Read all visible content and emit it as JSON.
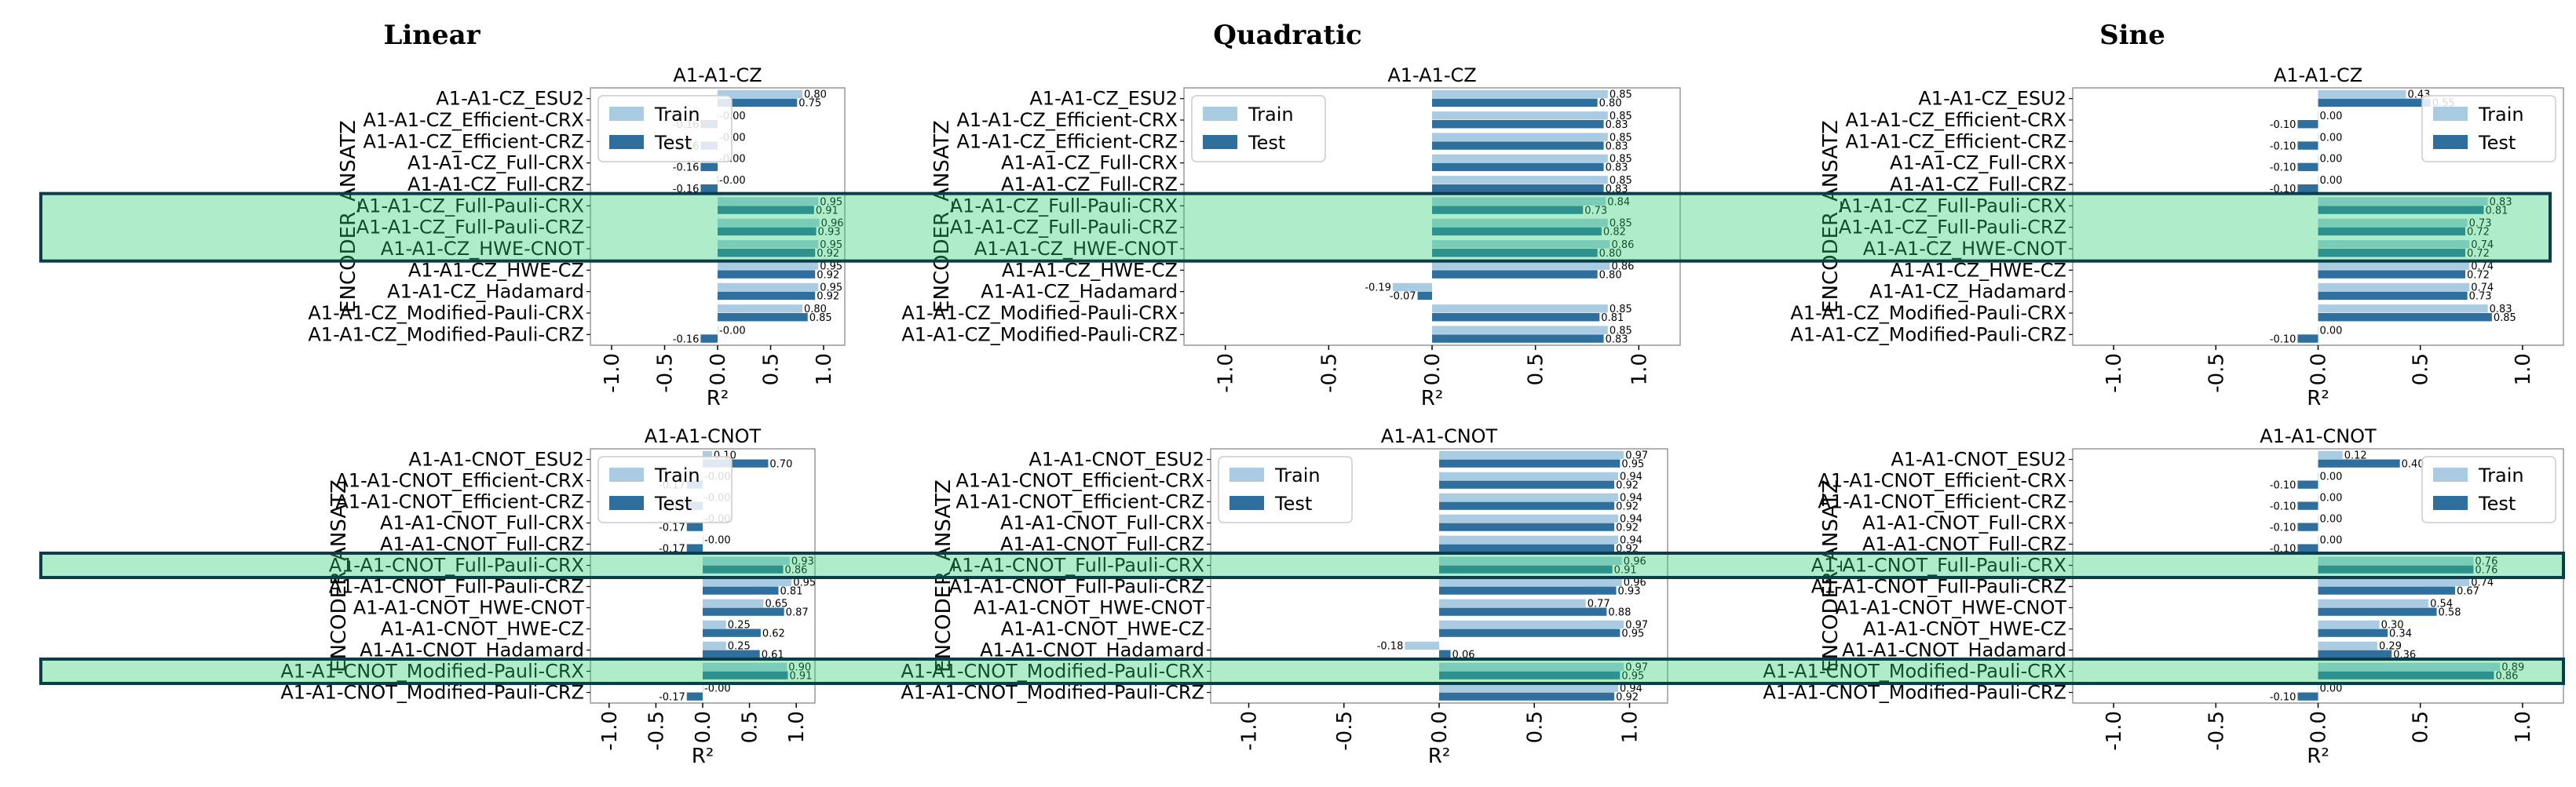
{
  "figure": {
    "column_titles": [
      "Linear",
      "Quadratic",
      "Sine"
    ],
    "legend": {
      "train": "Train",
      "test": "Test"
    },
    "colors": {
      "train": "#a9cce3",
      "test": "#2e6f9e",
      "highlight_fill": "#2ecc71",
      "highlight_stroke": "#0b3d4a"
    }
  },
  "chart_data": [
    {
      "type": "bar",
      "orientation": "horizontal",
      "column": "Linear",
      "row": 0,
      "title": "A1-A1-CZ",
      "xlabel": "R²",
      "ylabel": "ENCODER_ANSATZ",
      "xlim": [
        -1.2,
        1.2
      ],
      "xticks": [
        "-1.0",
        "-0.5",
        "0.0",
        "0.5",
        "1.0"
      ],
      "xtick_values": [
        -1.0,
        -0.5,
        0.0,
        0.5,
        1.0
      ],
      "legend_position": "upper-left",
      "categories": [
        "A1-A1-CZ_ESU2",
        "A1-A1-CZ_Efficient-CRX",
        "A1-A1-CZ_Efficient-CRZ",
        "A1-A1-CZ_Full-CRX",
        "A1-A1-CZ_Full-CRZ",
        "A1-A1-CZ_Full-Pauli-CRX",
        "A1-A1-CZ_Full-Pauli-CRZ",
        "A1-A1-CZ_HWE-CNOT",
        "A1-A1-CZ_HWE-CZ",
        "A1-A1-CZ_Hadamard",
        "A1-A1-CZ_Modified-Pauli-CRX",
        "A1-A1-CZ_Modified-Pauli-CRZ"
      ],
      "series": [
        {
          "name": "Train",
          "values": [
            0.8,
            -0.0,
            -0.0,
            -0.0,
            -0.0,
            0.95,
            0.96,
            0.95,
            0.95,
            0.95,
            0.8,
            -0.0
          ],
          "labels": [
            "0.80",
            "-0.00",
            "-0.00",
            "-0.00",
            "-0.00",
            "0.95",
            "0.96",
            "0.95",
            "0.95",
            "0.95",
            "0.80",
            "-0.00"
          ]
        },
        {
          "name": "Test",
          "values": [
            0.75,
            -0.16,
            -0.16,
            -0.16,
            -0.16,
            0.91,
            0.93,
            0.92,
            0.92,
            0.92,
            0.85,
            -0.16
          ],
          "labels": [
            "0.75",
            "-0.16",
            "-0.16",
            "-0.16",
            "-0.16",
            "0.91",
            "0.93",
            "0.92",
            "0.92",
            "0.92",
            "0.85",
            "-0.16"
          ]
        }
      ],
      "highlighted_categories": [
        "A1-A1-CZ_Full-Pauli-CRX",
        "A1-A1-CZ_Full-Pauli-CRZ",
        "A1-A1-CZ_HWE-CNOT"
      ]
    },
    {
      "type": "bar",
      "orientation": "horizontal",
      "column": "Quadratic",
      "row": 0,
      "title": "A1-A1-CZ",
      "xlabel": "R²",
      "ylabel": "ENCODER_ANSATZ",
      "xlim": [
        -1.2,
        1.2
      ],
      "xticks": [
        "-1.0",
        "-0.5",
        "0.0",
        "0.5",
        "1.0"
      ],
      "xtick_values": [
        -1.0,
        -0.5,
        0.0,
        0.5,
        1.0
      ],
      "legend_position": "upper-left",
      "categories": [
        "A1-A1-CZ_ESU2",
        "A1-A1-CZ_Efficient-CRX",
        "A1-A1-CZ_Efficient-CRZ",
        "A1-A1-CZ_Full-CRX",
        "A1-A1-CZ_Full-CRZ",
        "A1-A1-CZ_Full-Pauli-CRX",
        "A1-A1-CZ_Full-Pauli-CRZ",
        "A1-A1-CZ_HWE-CNOT",
        "A1-A1-CZ_HWE-CZ",
        "A1-A1-CZ_Hadamard",
        "A1-A1-CZ_Modified-Pauli-CRX",
        "A1-A1-CZ_Modified-Pauli-CRZ"
      ],
      "series": [
        {
          "name": "Train",
          "values": [
            0.85,
            0.85,
            0.85,
            0.85,
            0.85,
            0.84,
            0.85,
            0.86,
            0.86,
            -0.19,
            0.85,
            0.85
          ],
          "labels": [
            "0.85",
            "0.85",
            "0.85",
            "0.85",
            "0.85",
            "0.84",
            "0.85",
            "0.86",
            "0.86",
            "-0.19",
            "0.85",
            "0.85"
          ]
        },
        {
          "name": "Test",
          "values": [
            0.8,
            0.83,
            0.83,
            0.83,
            0.83,
            0.73,
            0.82,
            0.8,
            0.8,
            -0.07,
            0.81,
            0.83
          ],
          "labels": [
            "0.80",
            "0.83",
            "0.83",
            "0.83",
            "0.83",
            "0.73",
            "0.82",
            "0.80",
            "0.80",
            "-0.07",
            "0.81",
            "0.83"
          ]
        }
      ],
      "highlighted_categories": [
        "A1-A1-CZ_Full-Pauli-CRX",
        "A1-A1-CZ_Full-Pauli-CRZ",
        "A1-A1-CZ_HWE-CNOT"
      ]
    },
    {
      "type": "bar",
      "orientation": "horizontal",
      "column": "Sine",
      "row": 0,
      "title": "A1-A1-CZ",
      "xlabel": "R²",
      "ylabel": "ENCODER_ANSATZ",
      "xlim": [
        -1.2,
        1.2
      ],
      "xticks": [
        "-1.0",
        "-0.5",
        "0.0",
        "0.5",
        "1.0"
      ],
      "xtick_values": [
        -1.0,
        -0.5,
        0.0,
        0.5,
        1.0
      ],
      "legend_position": "upper-right",
      "categories": [
        "A1-A1-CZ_ESU2",
        "A1-A1-CZ_Efficient-CRX",
        "A1-A1-CZ_Efficient-CRZ",
        "A1-A1-CZ_Full-CRX",
        "A1-A1-CZ_Full-CRZ",
        "A1-A1-CZ_Full-Pauli-CRX",
        "A1-A1-CZ_Full-Pauli-CRZ",
        "A1-A1-CZ_HWE-CNOT",
        "A1-A1-CZ_HWE-CZ",
        "A1-A1-CZ_Hadamard",
        "A1-A1-CZ_Modified-Pauli-CRX",
        "A1-A1-CZ_Modified-Pauli-CRZ"
      ],
      "series": [
        {
          "name": "Train",
          "values": [
            0.43,
            0.0,
            0.0,
            0.0,
            0.0,
            0.83,
            0.73,
            0.74,
            0.74,
            0.74,
            0.83,
            0.0
          ],
          "labels": [
            "0.43",
            "0.00",
            "0.00",
            "0.00",
            "0.00",
            "0.83",
            "0.73",
            "0.74",
            "0.74",
            "0.74",
            "0.83",
            "0.00"
          ]
        },
        {
          "name": "Test",
          "values": [
            0.55,
            -0.1,
            -0.1,
            -0.1,
            -0.1,
            0.81,
            0.72,
            0.72,
            0.72,
            0.73,
            0.85,
            -0.1
          ],
          "labels": [
            "0.55",
            "-0.10",
            "-0.10",
            "-0.10",
            "-0.10",
            "0.81",
            "0.72",
            "0.72",
            "0.72",
            "0.73",
            "0.85",
            "-0.10"
          ]
        }
      ],
      "highlighted_categories": [
        "A1-A1-CZ_Full-Pauli-CRX",
        "A1-A1-CZ_Full-Pauli-CRZ",
        "A1-A1-CZ_HWE-CNOT"
      ]
    },
    {
      "type": "bar",
      "orientation": "horizontal",
      "column": "Linear",
      "row": 1,
      "title": "A1-A1-CNOT",
      "xlabel": "R²",
      "ylabel": "ENCODER_ANSATZ",
      "xlim": [
        -1.2,
        1.2
      ],
      "xticks": [
        "-1.0",
        "-0.5",
        "0.0",
        "0.5",
        "1.0"
      ],
      "xtick_values": [
        -1.0,
        -0.5,
        0.0,
        0.5,
        1.0
      ],
      "legend_position": "upper-left",
      "categories": [
        "A1-A1-CNOT_ESU2",
        "A1-A1-CNOT_Efficient-CRX",
        "A1-A1-CNOT_Efficient-CRZ",
        "A1-A1-CNOT_Full-CRX",
        "A1-A1-CNOT_Full-CRZ",
        "A1-A1-CNOT_Full-Pauli-CRX",
        "A1-A1-CNOT_Full-Pauli-CRZ",
        "A1-A1-CNOT_HWE-CNOT",
        "A1-A1-CNOT_HWE-CZ",
        "A1-A1-CNOT_Hadamard",
        "A1-A1-CNOT_Modified-Pauli-CRX",
        "A1-A1-CNOT_Modified-Pauli-CRZ"
      ],
      "series": [
        {
          "name": "Train",
          "values": [
            0.1,
            -0.0,
            -0.0,
            -0.0,
            -0.0,
            0.93,
            0.95,
            0.65,
            0.25,
            0.25,
            0.9,
            -0.0
          ],
          "labels": [
            "0.10",
            "-0.00",
            "-0.00",
            "-0.00",
            "-0.00",
            "0.93",
            "0.95",
            "0.65",
            "0.25",
            "0.25",
            "0.90",
            "-0.00"
          ]
        },
        {
          "name": "Test",
          "values": [
            0.7,
            -0.17,
            -0.17,
            -0.17,
            -0.17,
            0.86,
            0.81,
            0.87,
            0.62,
            0.61,
            0.91,
            -0.17
          ],
          "labels": [
            "0.70",
            "-0.17",
            "-0.17",
            "-0.17",
            "-0.17",
            "0.86",
            "0.81",
            "0.87",
            "0.62",
            "0.61",
            "0.91",
            "-0.17"
          ]
        }
      ],
      "highlighted_categories": [
        "A1-A1-CNOT_Full-Pauli-CRX",
        "A1-A1-CNOT_Modified-Pauli-CRX"
      ]
    },
    {
      "type": "bar",
      "orientation": "horizontal",
      "column": "Quadratic",
      "row": 1,
      "title": "A1-A1-CNOT",
      "xlabel": "R²",
      "ylabel": "ENCODER_ANSATZ",
      "xlim": [
        -1.2,
        1.2
      ],
      "xticks": [
        "-1.0",
        "-0.5",
        "0.0",
        "0.5",
        "1.0"
      ],
      "xtick_values": [
        -1.0,
        -0.5,
        0.0,
        0.5,
        1.0
      ],
      "legend_position": "upper-left",
      "categories": [
        "A1-A1-CNOT_ESU2",
        "A1-A1-CNOT_Efficient-CRX",
        "A1-A1-CNOT_Efficient-CRZ",
        "A1-A1-CNOT_Full-CRX",
        "A1-A1-CNOT_Full-CRZ",
        "A1-A1-CNOT_Full-Pauli-CRX",
        "A1-A1-CNOT_Full-Pauli-CRZ",
        "A1-A1-CNOT_HWE-CNOT",
        "A1-A1-CNOT_HWE-CZ",
        "A1-A1-CNOT_Hadamard",
        "A1-A1-CNOT_Modified-Pauli-CRX",
        "A1-A1-CNOT_Modified-Pauli-CRZ"
      ],
      "series": [
        {
          "name": "Train",
          "values": [
            0.97,
            0.94,
            0.94,
            0.94,
            0.94,
            0.96,
            0.96,
            0.77,
            0.97,
            -0.18,
            0.97,
            0.94
          ],
          "labels": [
            "0.97",
            "0.94",
            "0.94",
            "0.94",
            "0.94",
            "0.96",
            "0.96",
            "0.77",
            "0.97",
            "-0.18",
            "0.97",
            "0.94"
          ]
        },
        {
          "name": "Test",
          "values": [
            0.95,
            0.92,
            0.92,
            0.92,
            0.92,
            0.91,
            0.93,
            0.88,
            0.95,
            0.06,
            0.95,
            0.92
          ],
          "labels": [
            "0.95",
            "0.92",
            "0.92",
            "0.92",
            "0.92",
            "0.91",
            "0.93",
            "0.88",
            "0.95",
            "0.06",
            "0.95",
            "0.92"
          ]
        }
      ],
      "highlighted_categories": [
        "A1-A1-CNOT_Full-Pauli-CRX",
        "A1-A1-CNOT_Modified-Pauli-CRX"
      ]
    },
    {
      "type": "bar",
      "orientation": "horizontal",
      "column": "Sine",
      "row": 1,
      "title": "A1-A1-CNOT",
      "xlabel": "R²",
      "ylabel": "ENCODER_ANSATZ",
      "xlim": [
        -1.2,
        1.2
      ],
      "xticks": [
        "-1.0",
        "-0.5",
        "0.0",
        "0.5",
        "1.0"
      ],
      "xtick_values": [
        -1.0,
        -0.5,
        0.0,
        0.5,
        1.0
      ],
      "legend_position": "upper-right",
      "categories": [
        "A1-A1-CNOT_ESU2",
        "A1-A1-CNOT_Efficient-CRX",
        "A1-A1-CNOT_Efficient-CRZ",
        "A1-A1-CNOT_Full-CRX",
        "A1-A1-CNOT_Full-CRZ",
        "A1-A1-CNOT_Full-Pauli-CRX",
        "A1-A1-CNOT_Full-Pauli-CRZ",
        "A1-A1-CNOT_HWE-CNOT",
        "A1-A1-CNOT_HWE-CZ",
        "A1-A1-CNOT_Hadamard",
        "A1-A1-CNOT_Modified-Pauli-CRX",
        "A1-A1-CNOT_Modified-Pauli-CRZ"
      ],
      "series": [
        {
          "name": "Train",
          "values": [
            0.12,
            0.0,
            0.0,
            0.0,
            0.0,
            0.76,
            0.74,
            0.54,
            0.3,
            0.29,
            0.89,
            0.0
          ],
          "labels": [
            "0.12",
            "0.00",
            "0.00",
            "0.00",
            "0.00",
            "0.76",
            "0.74",
            "0.54",
            "0.30",
            "0.29",
            "0.89",
            "0.00"
          ]
        },
        {
          "name": "Test",
          "values": [
            0.4,
            -0.1,
            -0.1,
            -0.1,
            -0.1,
            0.76,
            0.67,
            0.58,
            0.34,
            0.36,
            0.86,
            -0.1
          ],
          "labels": [
            "0.40",
            "-0.10",
            "-0.10",
            "-0.10",
            "-0.10",
            "0.76",
            "0.67",
            "0.58",
            "0.34",
            "0.36",
            "0.86",
            "-0.10"
          ]
        }
      ],
      "highlighted_categories": [
        "A1-A1-CNOT_Full-Pauli-CRX",
        "A1-A1-CNOT_Modified-Pauli-CRX"
      ]
    }
  ]
}
